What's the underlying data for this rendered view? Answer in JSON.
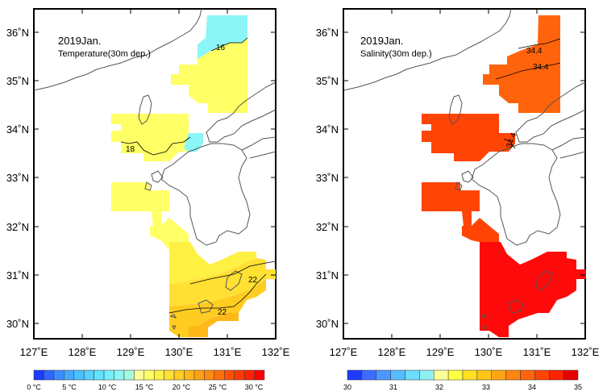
{
  "panels": [
    {
      "title": "2019Jan.",
      "subtitle": "Temperature(30m dep.)",
      "contour_labels": [
        "16",
        "18",
        "22",
        "22"
      ],
      "colorbar_labels": [
        "0 °C",
        "5 °C",
        "10 °C",
        "15 °C",
        "20 °C",
        "25 °C",
        "30 °C"
      ]
    },
    {
      "title": "2019Jan.",
      "subtitle": "Salinity(30m dep.)",
      "contour_labels": [
        "34.4",
        "34.4",
        "34.4"
      ],
      "colorbar_labels": [
        "30",
        "31",
        "32",
        "33",
        "34",
        "35"
      ]
    }
  ],
  "axes": {
    "x_ticks": [
      "127˚E",
      "128˚E",
      "129˚E",
      "130˚E",
      "131˚E",
      "132˚E"
    ],
    "y_ticks": [
      "30˚N",
      "31˚N",
      "32˚N",
      "33˚N",
      "34˚N",
      "35˚N",
      "36˚N"
    ]
  },
  "colors": {
    "temperature_scale": [
      "#1e3cff",
      "#2f66ff",
      "#3c8cff",
      "#46a8ff",
      "#4cc0ff",
      "#56d2ff",
      "#62e2ff",
      "#74eeff",
      "#8cf6f6",
      "#a6fadc",
      "#ffff9a",
      "#ffff66",
      "#fff044",
      "#ffe033",
      "#ffcc22",
      "#ffb81a",
      "#ffa014",
      "#ff8a10",
      "#ff700c",
      "#ff5208",
      "#ff3a06",
      "#ff2200",
      "#ff0000"
    ],
    "salinity_scale": [
      "#1e3cff",
      "#3c6cff",
      "#4c98ff",
      "#56bcff",
      "#6cdcff",
      "#8ef0f0",
      "#ffff99",
      "#ffff44",
      "#ffe020",
      "#ffc418",
      "#ffa414",
      "#ff8410",
      "#ff640c",
      "#ff4406",
      "#ff2200",
      "#e60000"
    ],
    "temp_region_colors": [
      "#8cf6f6",
      "#ffff66",
      "#fff044",
      "#ffe033",
      "#ffcc22",
      "#ffb81a"
    ],
    "sal_region_colors": [
      "#ff640c",
      "#ff4406",
      "#ff2200",
      "#e60000"
    ],
    "land_outline": "#555555",
    "contour": "#000000"
  }
}
